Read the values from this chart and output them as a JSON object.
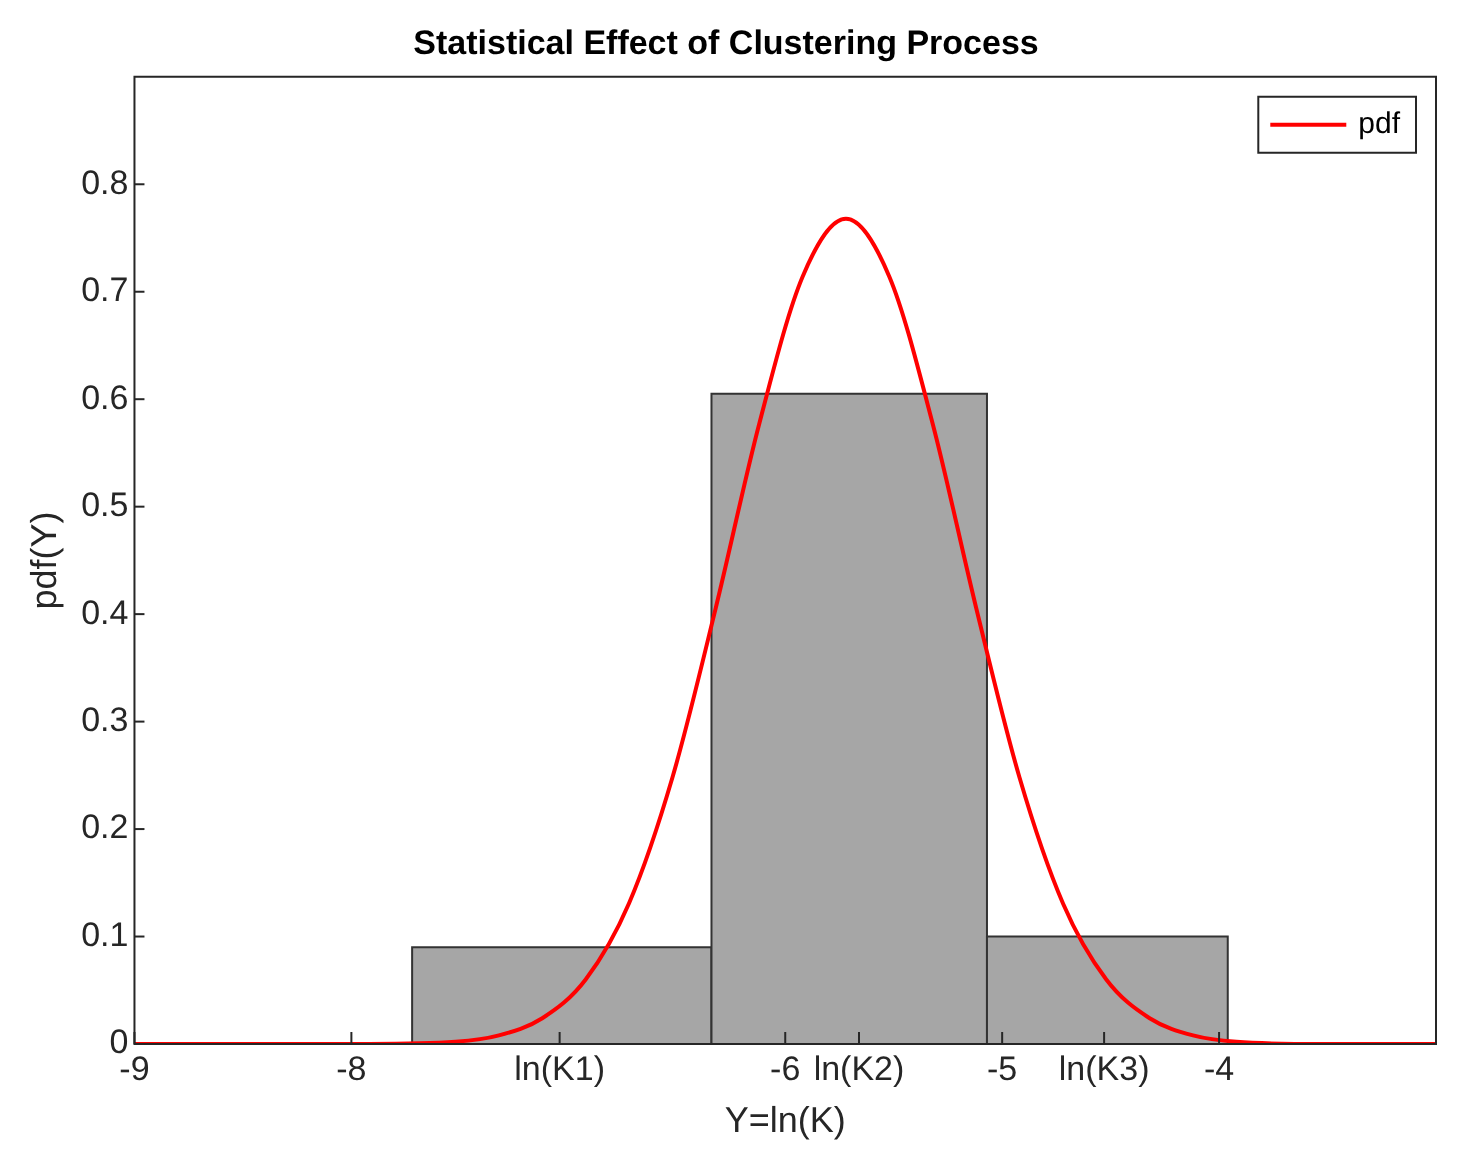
{
  "chart_data": {
    "type": "histogram",
    "title": "Statistical Effect of Clustering Process",
    "xlabel": "Y=ln(K)",
    "ylabel": "pdf(Y)",
    "bins": [
      -7.72,
      -6.34,
      -5.07,
      -3.96
    ],
    "values": [
      0.09,
      0.605,
      0.1
    ],
    "color": "#a6a6a6",
    "series": [
      {
        "type": "line",
        "name": "pdf",
        "color": "#ff0000",
        "x": [
          -9,
          -7.92,
          -7.52,
          -7.32,
          -7.12,
          -6.92,
          -6.72,
          -6.52,
          -6.32,
          -6.12,
          -5.92,
          -5.72,
          -5.52,
          -5.32,
          -5.12,
          -4.92,
          -4.72,
          -4.52,
          -4.32,
          -4.12,
          -3.92,
          -3.52,
          -3
        ],
        "values": [
          0,
          0,
          0.002,
          0.008,
          0.024,
          0.06,
          0.131,
          0.248,
          0.406,
          0.577,
          0.714,
          0.768,
          0.714,
          0.577,
          0.406,
          0.248,
          0.131,
          0.06,
          0.024,
          0.008,
          0.002,
          0,
          0
        ]
      }
    ],
    "xlim": [
      -9,
      -3
    ],
    "xticks": [
      -9,
      -8,
      {
        "value": -7.04,
        "label": "ln(K1)"
      },
      -6,
      {
        "value": -5.66,
        "label": "ln(K2)"
      },
      -5,
      {
        "value": -4.53,
        "label": "ln(K3)"
      },
      -4
    ],
    "ylim": [
      0,
      0.9
    ],
    "yticks": [
      0,
      0.1,
      0.2,
      0.3,
      0.4,
      0.5,
      0.6,
      0.7,
      0.8
    ],
    "grid": false,
    "legend": "top right",
    "marker": "none",
    "line_style": "solid"
  }
}
